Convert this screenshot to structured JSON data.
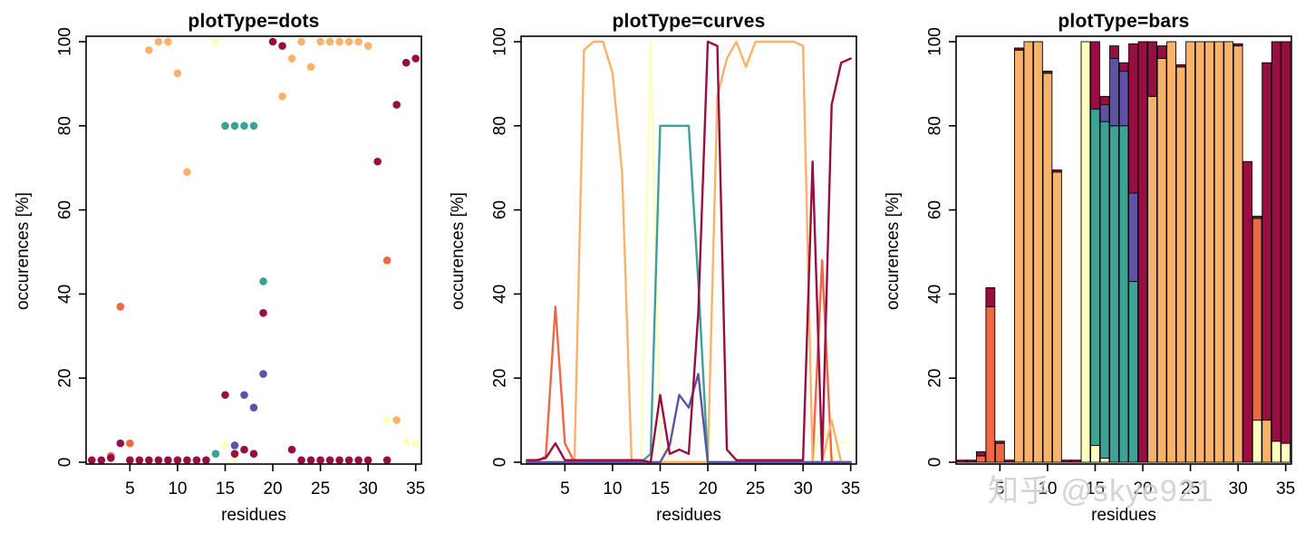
{
  "watermark": {
    "text": "知乎 @skye921"
  },
  "chart_data": {
    "type": "multi-panel",
    "panels": [
      {
        "type": "scatter",
        "title": "plotType=dots"
      },
      {
        "type": "line",
        "title": "plotType=curves"
      },
      {
        "type": "bar",
        "stacked": true,
        "title": "plotType=bars"
      }
    ],
    "xlabel": "residues",
    "ylabel": "occurences [%]",
    "xlim": [
      1,
      35
    ],
    "ylim": [
      0,
      100
    ],
    "xticks": [
      5,
      10,
      15,
      20,
      25,
      30,
      35
    ],
    "yticks": [
      0,
      20,
      40,
      60,
      80,
      100
    ],
    "grid": false,
    "legend": false,
    "x": [
      1,
      2,
      3,
      4,
      5,
      6,
      7,
      8,
      9,
      10,
      11,
      12,
      13,
      14,
      15,
      16,
      17,
      18,
      19,
      20,
      21,
      22,
      23,
      24,
      25,
      26,
      27,
      28,
      29,
      30,
      31,
      32,
      33,
      34,
      35
    ],
    "series": [
      {
        "name": "pale-yellow",
        "color": "#FEFEBE",
        "values": [
          0,
          0,
          0,
          0,
          0,
          0,
          0,
          0,
          0,
          0,
          0,
          0,
          0,
          100,
          4,
          1,
          0,
          0,
          0,
          0,
          0,
          0,
          0,
          0,
          0,
          0,
          0,
          0,
          0,
          0,
          0,
          10,
          0,
          5,
          4.5
        ]
      },
      {
        "name": "orange-red",
        "color": "#EF6845",
        "values": [
          0,
          0,
          1.5,
          37,
          4.5,
          0,
          0,
          0,
          0,
          0,
          0,
          0,
          0,
          0,
          0,
          0,
          0,
          0,
          0,
          0,
          0,
          0,
          0,
          0,
          0,
          0,
          0,
          0,
          0,
          0,
          0,
          48,
          0,
          0,
          0
        ]
      },
      {
        "name": "light-orange",
        "color": "#F9B269",
        "values": [
          0,
          0,
          0,
          0,
          0,
          0,
          98,
          100,
          100,
          92.5,
          69,
          0,
          0,
          0,
          0,
          0,
          0,
          0,
          0,
          0,
          87,
          96,
          100,
          94,
          100,
          100,
          100,
          100,
          100,
          99,
          0,
          0,
          10,
          0,
          0
        ]
      },
      {
        "name": "teal",
        "color": "#3FA096",
        "values": [
          0,
          0,
          0,
          0,
          0,
          0,
          0,
          0,
          0,
          0,
          0,
          0,
          0,
          2,
          80,
          80,
          80,
          80,
          43,
          0,
          0,
          0,
          0,
          0,
          0,
          0,
          0,
          0,
          0,
          0,
          0,
          0,
          0,
          0,
          0
        ]
      },
      {
        "name": "purple",
        "color": "#5C53A5",
        "values": [
          0,
          0,
          0,
          0,
          0,
          0,
          0,
          0,
          0,
          0,
          0,
          0,
          0,
          0,
          0,
          4,
          16,
          13,
          21,
          0,
          0,
          0,
          0,
          0,
          0,
          0,
          0,
          0,
          0,
          0,
          0,
          0,
          0,
          0,
          0
        ]
      },
      {
        "name": "dark-red",
        "color": "#970E42",
        "values": [
          0.5,
          0.5,
          1,
          4.5,
          0.5,
          0.5,
          0.5,
          0.5,
          0.5,
          0.5,
          0.5,
          0.5,
          0.5,
          0,
          16,
          2,
          3,
          2,
          35.5,
          100,
          99,
          3,
          0.5,
          0.5,
          0.5,
          0.5,
          0.5,
          0.5,
          0.5,
          0.5,
          71.5,
          0.5,
          85,
          95,
          96
        ]
      }
    ]
  }
}
